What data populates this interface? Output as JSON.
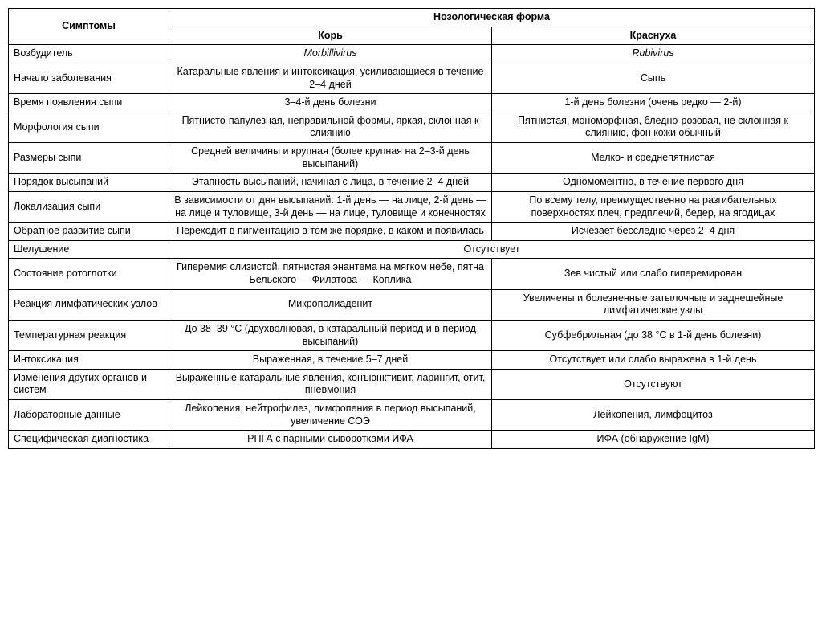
{
  "header": {
    "symptoms": "Симптомы",
    "form_group": "Нозологическая форма",
    "col_a": "Корь",
    "col_b": "Краснуха"
  },
  "rows": [
    {
      "sym": "Возбудитель",
      "a": "Morbillivirus",
      "b": "Rubivirus",
      "italic": true
    },
    {
      "sym": "Начало заболевания",
      "a": "Катаральные явления и интоксикация, усиливающиеся в течение 2–4 дней",
      "b": "Сыпь"
    },
    {
      "sym": "Время появления сыпи",
      "a": "3–4-й день болезни",
      "b": "1-й день болезни (очень редко — 2-й)"
    },
    {
      "sym": "Морфология сыпи",
      "a": "Пятнисто-папулезная, неправильной формы, яркая, склонная к слиянию",
      "b": "Пятнистая, мономорфная, бледно-розовая, не склонная к слиянию, фон кожи обычный"
    },
    {
      "sym": "Размеры сыпи",
      "a": "Средней величины и крупная (более крупная на 2–3-й день высыпаний)",
      "b": "Мелко- и среднепятнистая"
    },
    {
      "sym": "Порядок высыпаний",
      "a": "Этапность высыпаний, начиная с лица, в течение 2–4 дней",
      "b": "Одномоментно, в течение первого дня"
    },
    {
      "sym": "Локализация сыпи",
      "a": "В зависимости от дня высыпаний: 1-й день — на лице, 2-й день — на лице и туловище, 3-й день — на лице, туловище и конечностях",
      "b": "По всему телу, преимущественно на разгибательных поверхностях плеч, предплечий, бедер, на ягодицах"
    },
    {
      "sym": "Обратное развитие сыпи",
      "a": "Переходит в пигментацию в том же порядке, в каком и появилась",
      "b": "Исчезает бесследно через 2–4 дня"
    },
    {
      "sym": "Шелушение",
      "merged": "Отсутствует"
    },
    {
      "sym": "Состояние ротоглотки",
      "a": "Гиперемия слизистой, пятнистая энантема на мягком небе, пятна Бельского — Филатова — Коплика",
      "b": "Зев чистый или слабо гиперемирован"
    },
    {
      "sym": "Реакция лимфатических узлов",
      "a": "Микрополиаденит",
      "b": "Увеличены и болезненные затылочные и заднешейные лимфатические узлы"
    },
    {
      "sym": "Температурная реакция",
      "a": "До 38–39 °С (двухволновая, в катаральный период и в период высыпаний)",
      "b": "Субфебрильная (до 38 °С в 1-й день болезни)"
    },
    {
      "sym": "Интоксикация",
      "a": "Выраженная, в течение 5–7 дней",
      "b": "Отсутствует или слабо выражена в 1-й день"
    },
    {
      "sym": "Изменения других органов и систем",
      "a": "Выраженные катаральные явления, конъюнктивит, ларингит, отит, пневмония",
      "b": "Отсутствуют"
    },
    {
      "sym": "Лабораторные данные",
      "a": "Лейкопения, нейтрофилез, лимфопения в период высыпаний, увеличение СОЭ",
      "b": "Лейкопения, лимфоцитоз"
    },
    {
      "sym": "Специфическая диагностика",
      "a": "РПГА с парными сыворотками ИФА",
      "b": "ИФА (обнаружение IgM)"
    }
  ]
}
